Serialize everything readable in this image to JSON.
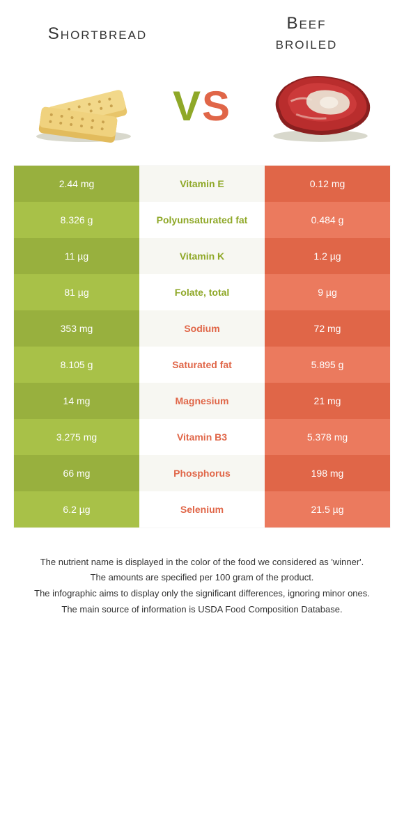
{
  "colors": {
    "green_winner": "#8fa828",
    "red_winner": "#e06648",
    "green_cell_odd": "#98b03e",
    "green_cell_even": "#a8c148",
    "red_cell_odd": "#e06648",
    "red_cell_even": "#eb7a5e",
    "mid_odd": "#f7f7f2",
    "mid_even": "#ffffff",
    "text": "#333333"
  },
  "header": {
    "left_title": "Shortbread",
    "right_title_line1": "Beef",
    "right_title_line2": "broiled",
    "vs_v": "V",
    "vs_s": "S"
  },
  "rows": [
    {
      "left": "2.44 mg",
      "label": "Vitamin E",
      "right": "0.12 mg",
      "winner": "green"
    },
    {
      "left": "8.326 g",
      "label": "Polyunsaturated fat",
      "right": "0.484 g",
      "winner": "green"
    },
    {
      "left": "11 µg",
      "label": "Vitamin K",
      "right": "1.2 µg",
      "winner": "green"
    },
    {
      "left": "81 µg",
      "label": "Folate, total",
      "right": "9 µg",
      "winner": "green"
    },
    {
      "left": "353 mg",
      "label": "Sodium",
      "right": "72 mg",
      "winner": "red"
    },
    {
      "left": "8.105 g",
      "label": "Saturated fat",
      "right": "5.895 g",
      "winner": "red"
    },
    {
      "left": "14 mg",
      "label": "Magnesium",
      "right": "21 mg",
      "winner": "red"
    },
    {
      "left": "3.275 mg",
      "label": "Vitamin B3",
      "right": "5.378 mg",
      "winner": "red"
    },
    {
      "left": "66 mg",
      "label": "Phosphorus",
      "right": "198 mg",
      "winner": "red"
    },
    {
      "left": "6.2 µg",
      "label": "Selenium",
      "right": "21.5 µg",
      "winner": "red"
    }
  ],
  "footer": {
    "line1": "The nutrient name is displayed in the color of the food we considered as 'winner'.",
    "line2": "The amounts are specified per 100 gram of the product.",
    "line3": "The infographic aims to display only the significant differences, ignoring minor ones.",
    "line4": "The main source of information is USDA Food Composition Database."
  }
}
